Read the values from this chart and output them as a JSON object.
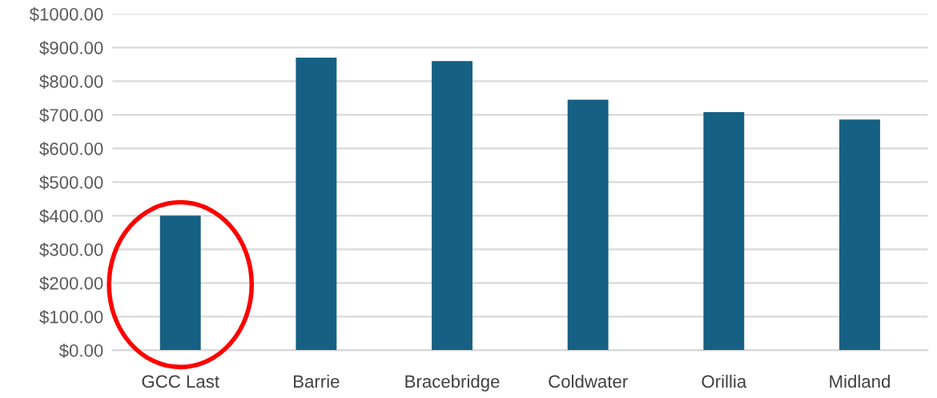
{
  "chart_data": {
    "type": "bar",
    "categories": [
      "GCC Last",
      "Barrie",
      "Bracebridge",
      "Coldwater",
      "Orillia",
      "Midland"
    ],
    "values": [
      400,
      870,
      860,
      745,
      708,
      686
    ],
    "color": "#166083",
    "ylim": [
      0,
      1000
    ],
    "yticks": [
      {
        "value": 0,
        "label": "$0.00"
      },
      {
        "value": 100,
        "label": "$100.00"
      },
      {
        "value": 200,
        "label": "$200.00"
      },
      {
        "value": 300,
        "label": "$300.00"
      },
      {
        "value": 400,
        "label": "$400.00"
      },
      {
        "value": 500,
        "label": "$500.00"
      },
      {
        "value": 600,
        "label": "$600.00"
      },
      {
        "value": 700,
        "label": "$700.00"
      },
      {
        "value": 800,
        "label": "$800.00"
      },
      {
        "value": 900,
        "label": "$900.00"
      },
      {
        "value": 1000,
        "label": "$1000.00"
      }
    ],
    "grid": "y"
  }
}
